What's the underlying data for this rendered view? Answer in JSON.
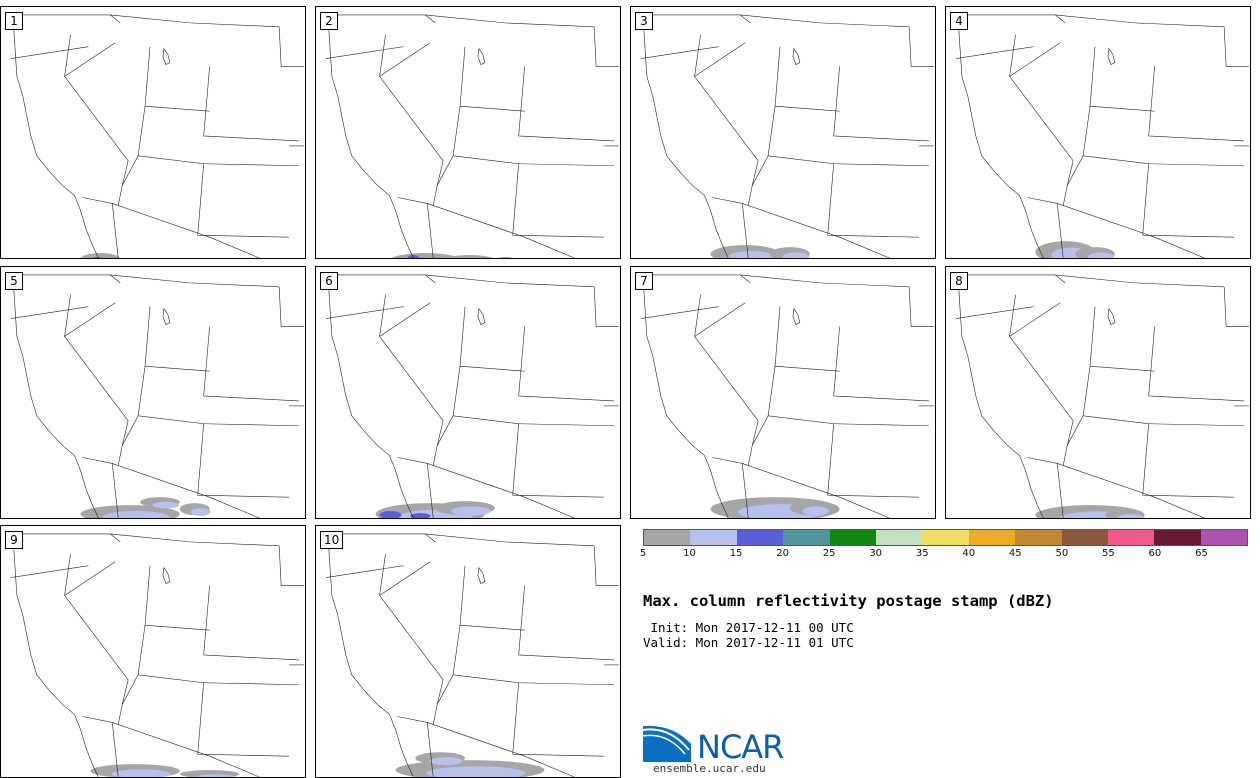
{
  "panels": [
    {
      "label": "1",
      "precip": [
        [
          80,
          248,
          40,
          12
        ],
        [
          110,
          254,
          40,
          8
        ]
      ],
      "strong": [
        [
          90,
          252,
          14,
          6
        ]
      ]
    },
    {
      "label": "2",
      "precip": [
        [
          75,
          248,
          70,
          14
        ],
        [
          130,
          250,
          50,
          10
        ],
        [
          180,
          252,
          20,
          6
        ]
      ],
      "strong": [
        [
          92,
          250,
          12,
          7
        ]
      ]
    },
    {
      "label": "3",
      "precip": [
        [
          80,
          240,
          70,
          18
        ],
        [
          140,
          242,
          40,
          14
        ]
      ],
      "strong": []
    },
    {
      "label": "4",
      "precip": [
        [
          90,
          236,
          60,
          22
        ],
        [
          130,
          242,
          40,
          14
        ]
      ],
      "strong": []
    },
    {
      "label": "5",
      "precip": [
        [
          80,
          240,
          100,
          18
        ],
        [
          140,
          232,
          40,
          10
        ],
        [
          180,
          238,
          30,
          12
        ]
      ],
      "strong": []
    },
    {
      "label": "6",
      "precip": [
        [
          60,
          238,
          110,
          22
        ],
        [
          120,
          236,
          60,
          14
        ]
      ],
      "strong": [
        [
          64,
          246,
          22,
          8
        ],
        [
          95,
          248,
          20,
          6
        ]
      ]
    },
    {
      "label": "7",
      "precip": [
        [
          80,
          232,
          130,
          24
        ],
        [
          160,
          236,
          40,
          14
        ]
      ],
      "strong": []
    },
    {
      "label": "8",
      "precip": [
        [
          90,
          240,
          110,
          20
        ],
        [
          160,
          244,
          40,
          12
        ]
      ],
      "strong": []
    },
    {
      "label": "9",
      "precip": [
        [
          90,
          240,
          90,
          14
        ],
        [
          180,
          246,
          60,
          8
        ]
      ],
      "strong": []
    },
    {
      "label": "10",
      "precip": [
        [
          80,
          236,
          150,
          20
        ],
        [
          100,
          228,
          50,
          12
        ]
      ],
      "strong": []
    }
  ],
  "colorbar": {
    "colors": [
      "#a6a6a6",
      "#b7c1ed",
      "#5a5ed8",
      "#4f969a",
      "#0d8a0d",
      "#c2dfc2",
      "#f0dc5f",
      "#eeaa21",
      "#c2862f",
      "#8b5a3c",
      "#f2588a",
      "#6a1834",
      "#b04fb6"
    ],
    "ticks": [
      "5",
      "10",
      "15",
      "20",
      "25",
      "30",
      "35",
      "40",
      "45",
      "50",
      "55",
      "60",
      "65"
    ]
  },
  "title": "Max. column reflectivity postage stamp (dBZ)",
  "init": " Init: Mon 2017-12-11 00 UTC",
  "valid": "Valid: Mon 2017-12-11 01 UTC",
  "logo": {
    "text": "NCAR",
    "url": "ensemble.ucar.edu"
  }
}
